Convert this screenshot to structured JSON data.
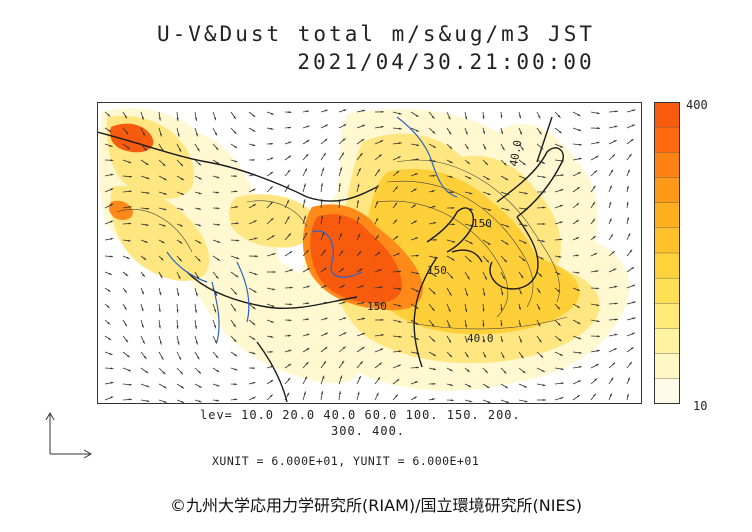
{
  "title": {
    "line1": "U-V&Dust total m/s&ug/m3 JST",
    "line2": "2021/04/30.21:00:00"
  },
  "colorbar": {
    "max_label": "400",
    "min_label": "10",
    "colors": [
      "#fffbe8",
      "#fff7c6",
      "#fff2a0",
      "#ffea7a",
      "#ffe055",
      "#ffd23b",
      "#ffc22c",
      "#ffb020",
      "#ff9a18",
      "#ff8213",
      "#ff6a10",
      "#f85a0e"
    ]
  },
  "contour_levels": {
    "line1": "lev= 10.0 20.0 40.0 60.0 100. 150. 200.",
    "line2": "300. 400."
  },
  "contour_labels": [
    "150",
    "150",
    "150",
    "40.0",
    "40.0"
  ],
  "units_line": "XUNIT = 6.000E+01, YUNIT = 6.000E+01",
  "copyright": "©九州大学応用力学研究所(RIAM)/国立環境研究所(NIES)"
}
